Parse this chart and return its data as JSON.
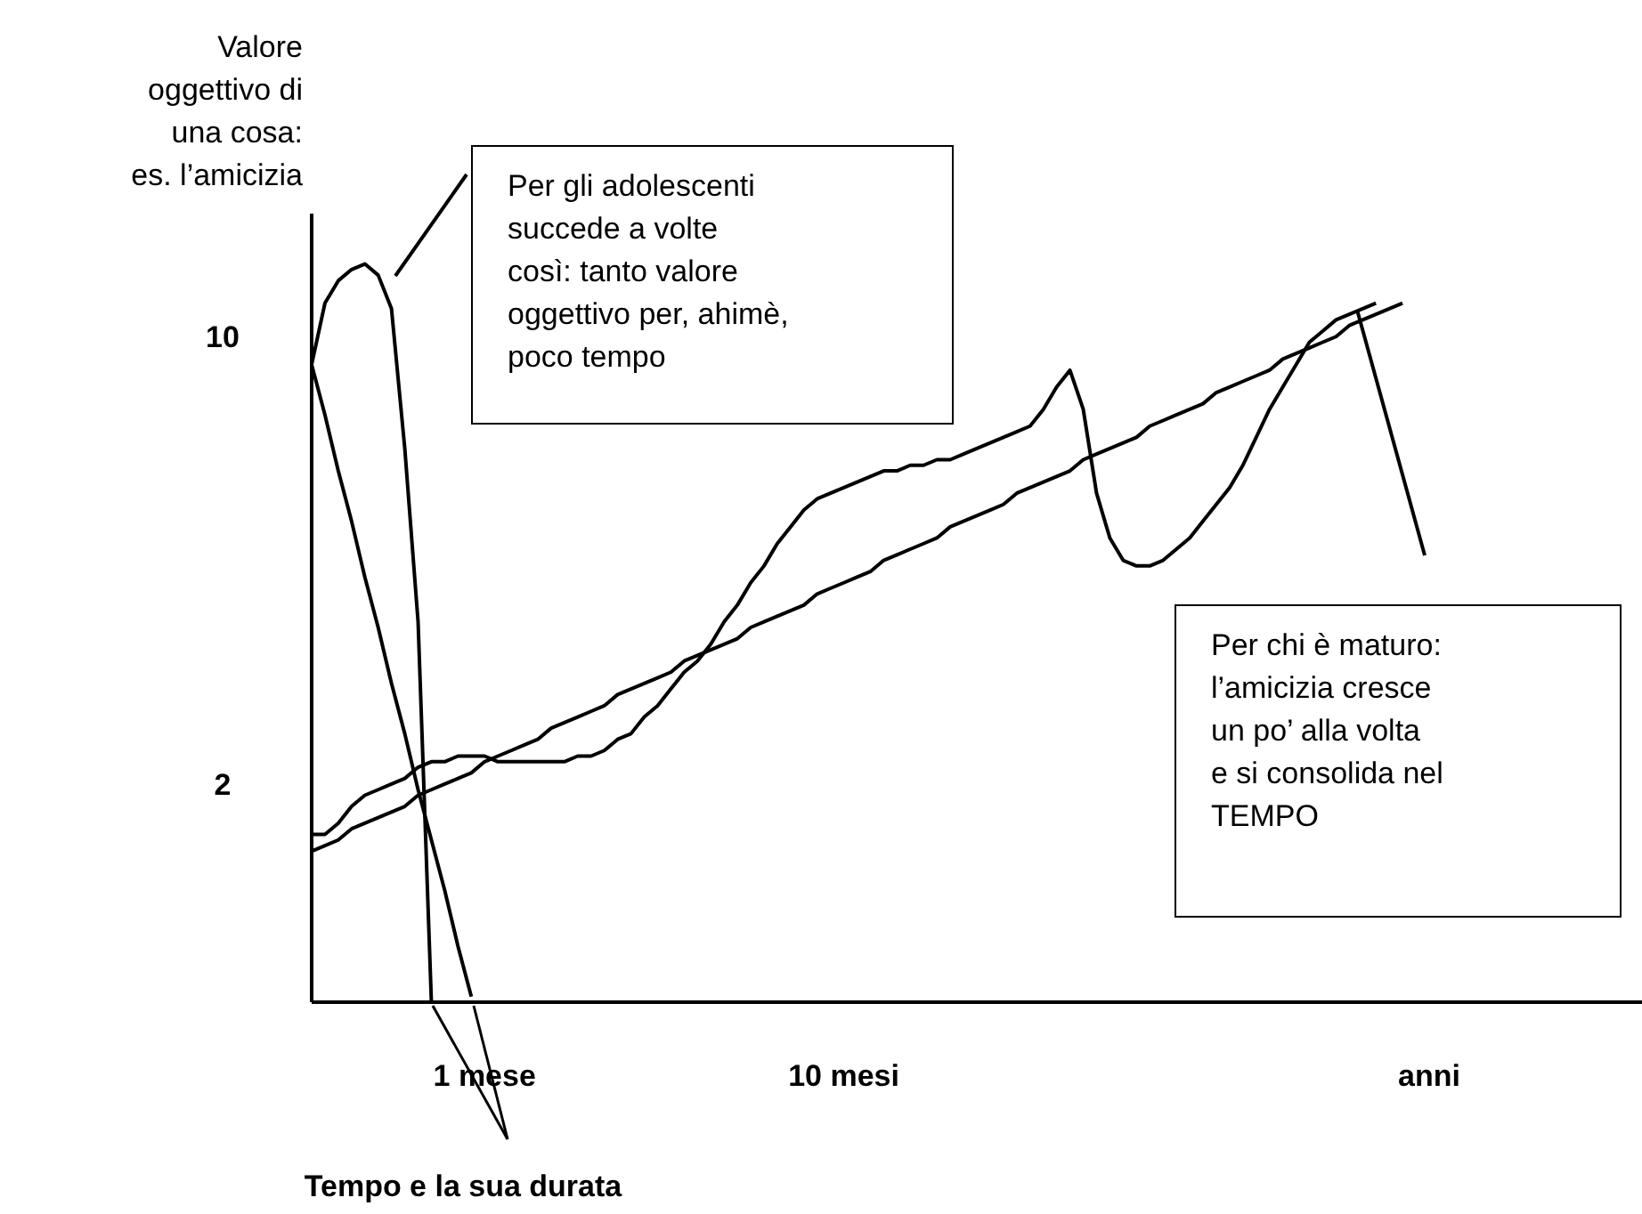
{
  "chart_data": {
    "type": "line",
    "ylabel": "Valore\noggettivo di\nuna cosa:\nes. l’amicizia",
    "xlabel": "Tempo e la sua durata",
    "categories": [
      null,
      null,
      null,
      null,
      null,
      null,
      null,
      null,
      null,
      null,
      null,
      null,
      null,
      "1 mese",
      null,
      null,
      null,
      null,
      null,
      null,
      null,
      null,
      null,
      null,
      null,
      null,
      null,
      null,
      null,
      null,
      null,
      null,
      null,
      null,
      null,
      null,
      null,
      null,
      null,
      null,
      "10 mesi",
      null,
      null,
      null,
      null,
      null,
      null,
      null,
      null,
      null,
      null,
      null,
      null,
      null,
      null,
      null,
      null,
      null,
      null,
      null,
      null,
      null,
      null,
      null,
      null,
      null,
      null,
      null,
      null,
      null,
      null,
      null,
      null,
      null,
      null,
      null,
      null,
      null,
      null,
      null,
      null,
      null,
      null,
      null,
      "anni",
      null,
      null,
      null,
      null,
      null,
      null,
      null,
      null,
      null,
      null,
      null,
      null,
      null,
      null,
      null,
      null
    ],
    "ylim": [
      -1.9,
      12.2
    ],
    "yticks": [
      2,
      10
    ],
    "grid": false,
    "marker": "none",
    "line_style": "solid",
    "series": [
      {
        "color": "#000000",
        "values": [
          9.5,
          10.6,
          11.0,
          11.2,
          11.3,
          11.1,
          10.5,
          8.0,
          4.9,
          -1.9,
          null,
          null,
          null,
          null,
          null,
          null,
          null,
          null,
          null,
          null,
          null,
          null,
          null,
          null,
          null,
          null,
          null,
          null,
          null,
          null,
          null,
          null,
          null,
          null,
          null,
          null,
          null,
          null,
          null,
          null,
          null,
          null,
          null,
          null,
          null,
          null,
          null,
          null,
          null,
          null,
          null,
          null,
          null,
          null,
          null,
          null,
          null,
          null,
          null,
          null,
          null,
          null,
          null,
          null,
          null,
          null,
          null,
          null,
          null,
          null,
          null,
          null,
          null,
          null,
          null,
          null,
          null,
          null,
          null,
          null,
          null,
          null,
          null,
          null,
          null,
          null,
          null,
          null,
          null,
          null,
          null,
          null,
          null,
          null,
          null,
          null,
          null,
          null,
          null,
          null,
          null
        ]
      },
      {
        "color": "#000000",
        "values": [
          9.5,
          8.6,
          7.6,
          6.7,
          5.7,
          4.8,
          3.8,
          2.9,
          1.9,
          1.0,
          0.1,
          -0.9,
          -1.8,
          null,
          null,
          null,
          null,
          null,
          null,
          null,
          null,
          null,
          null,
          null,
          null,
          null,
          null,
          null,
          null,
          null,
          null,
          null,
          null,
          null,
          null,
          null,
          null,
          null,
          null,
          null,
          null,
          null,
          null,
          null,
          null,
          null,
          null,
          null,
          null,
          null,
          null,
          null,
          null,
          null,
          null,
          null,
          null,
          null,
          null,
          null,
          null,
          null,
          null,
          null,
          null,
          null,
          null,
          null,
          null,
          null,
          null,
          null,
          null,
          null,
          null,
          null,
          null,
          null,
          null,
          null,
          null,
          null,
          null,
          null,
          null,
          null,
          null,
          null,
          null,
          null,
          null,
          null,
          null,
          null,
          null,
          null,
          null,
          null,
          null,
          null,
          null
        ]
      },
      {
        "color": "#000000",
        "values": [
          1.1,
          1.1,
          1.3,
          1.6,
          1.8,
          1.9,
          2.0,
          2.1,
          2.3,
          2.4,
          2.4,
          2.5,
          2.5,
          2.5,
          2.4,
          2.4,
          2.4,
          2.4,
          2.4,
          2.4,
          2.5,
          2.5,
          2.6,
          2.8,
          2.9,
          3.2,
          3.4,
          3.7,
          4.0,
          4.2,
          4.5,
          4.9,
          5.2,
          5.6,
          5.9,
          6.3,
          6.6,
          6.9,
          7.1,
          7.2,
          7.3,
          7.4,
          7.5,
          7.6,
          7.6,
          7.7,
          7.7,
          7.8,
          7.8,
          7.9,
          8.0,
          8.1,
          8.2,
          8.3,
          8.4,
          8.7,
          9.1,
          9.4,
          8.7,
          7.2,
          6.4,
          6.0,
          5.9,
          5.9,
          6.0,
          6.2,
          6.4,
          6.7,
          7.0,
          7.3,
          7.7,
          8.2,
          8.7,
          9.1,
          9.5,
          9.9,
          10.1,
          10.3,
          10.4,
          10.5,
          10.6,
          null,
          null,
          null,
          null,
          null,
          null,
          null,
          null,
          null,
          null,
          null,
          null,
          null,
          null,
          null,
          null,
          null,
          null,
          null,
          null
        ]
      },
      {
        "color": "#000000",
        "values": [
          0.8,
          0.9,
          1.0,
          1.2,
          1.3,
          1.4,
          1.5,
          1.6,
          1.8,
          1.9,
          2.0,
          2.1,
          2.2,
          2.4,
          2.5,
          2.6,
          2.7,
          2.8,
          3.0,
          3.1,
          3.2,
          3.3,
          3.4,
          3.6,
          3.7,
          3.8,
          3.9,
          4.0,
          4.2,
          4.3,
          4.4,
          4.5,
          4.6,
          4.8,
          4.9,
          5.0,
          5.1,
          5.2,
          5.4,
          5.5,
          5.6,
          5.7,
          5.8,
          6.0,
          6.1,
          6.2,
          6.3,
          6.4,
          6.6,
          6.7,
          6.8,
          6.9,
          7.0,
          7.2,
          7.3,
          7.4,
          7.5,
          7.6,
          7.8,
          7.9,
          8.0,
          8.1,
          8.2,
          8.4,
          8.5,
          8.6,
          8.7,
          8.8,
          9.0,
          9.1,
          9.2,
          9.3,
          9.4,
          9.6,
          9.7,
          9.8,
          9.9,
          10.0,
          10.2,
          10.3,
          10.4,
          10.5,
          10.6,
          null,
          null,
          null,
          null,
          null,
          null,
          null,
          null,
          null,
          null,
          null,
          null,
          null,
          null,
          null,
          null,
          null,
          null
        ]
      }
    ],
    "annotations": [
      "Per gli adolescenti\nsuccede a volte\ncosì: tanto valore\noggettivo per, ahimè,\npoco tempo",
      "Per chi è maturo:\nl’amicizia cresce\nun po’ alla volta\ne si consolida nel\nTEMPO"
    ]
  }
}
